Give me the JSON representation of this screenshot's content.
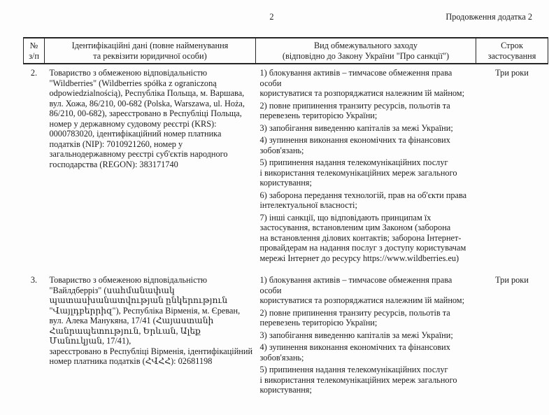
{
  "page": {
    "number": "2",
    "continuation": "Продовження додатка 2"
  },
  "colors": {
    "ink": "#1d1d1d",
    "paper": "#fdfdfd",
    "table_border": "#262626"
  },
  "table": {
    "headers": {
      "num": "№\nз/п",
      "identification": "Ідентифікаційні дані (повне найменування\nта реквізити юридичної особи)",
      "measure": "Вид обмежувального заходу\n(відповідно до Закону України \"Про санкції\")",
      "term": "Строк\nзастосування"
    },
    "rows": [
      {
        "num": "2.",
        "identification": "Товариство з обмеженою відповідальністю\n\"Wildberries\" (Wildberries spółka z ograniczoną\nodpowiedzialnością), Республіка Польща, м. Варшава,\nвул. Хожа, 86/210, 00-682 (Polska, Warszawa, ul. Hoża,\n86/210, 00-682), зареєстровано в Республіці Польща,\nномер у державному судовому реєстрі (KRS):\n0000783020, ідентифікаційний номер платника\nподатків (NIP): 7010921260, номер у\nзагальнодержавному реєстрі суб'єктів народного\nгосподарства (REGON): 383171740",
        "measures": [
          "1) блокування активів – тимчасове обмеження права особи\nкористуватися та розпоряджатися належним їй майном;",
          "2) повне припинення транзиту ресурсів, польотів та\nперевезень територією України;",
          "3) запобігання виведенню капіталів за межі України;",
          "4) зупинення виконання економічних та фінансових\nзобов'язань;",
          "5) припинення надання телекомунікаційних послуг\nі використання телекомунікаційних мереж загального\nкористування;",
          "6) заборона передання технологій, прав на об'єкти права\nінтелектуальної власності;",
          "7) інші санкції, що відповідають принципам їх\nзастосування, встановленим цим Законом (заборона\nна встановлення ділових контактів; заборона Інтернет-\nпровайдерам на надання послуг з доступу користувачам\nмережі Інтернет до ресурсу https://www.wildberries.eu)"
        ],
        "term": "Три роки"
      },
      {
        "num": "3.",
        "identification": "Товариство з обмеженою відповідальністю\n\"Вайлдберріз\" (սահմանափակ\nպատասխանատվության ընկերություն\n\"Վայլդբերրիզ\"), Республіка Вірменія, м. Єреван,\nвул. Алека Манукяна, 17/41 (Հայաստանի\nՀանրապետություն, Երևան, Ալեք Մանուկյան, 17/41),\nзареєстровано в Республіці Вірменія, ідентифікаційний\nномер платника податків (ՀՎՀՀ): 02681198",
        "measures": [
          "1) блокування активів – тимчасове обмеження права особи\nкористуватися та розпоряджатися належним їй майном;",
          "2) повне припинення транзиту ресурсів, польотів та\nперевезень територією України;",
          "3) запобігання виведенню капіталів за межі України;",
          "4) зупинення виконання економічних та фінансових\nзобов'язань;",
          "5) припинення надання телекомунікаційних послуг\nі використання телекомунікаційних мереж загального\nкористування;"
        ],
        "term": "Три роки"
      }
    ]
  }
}
